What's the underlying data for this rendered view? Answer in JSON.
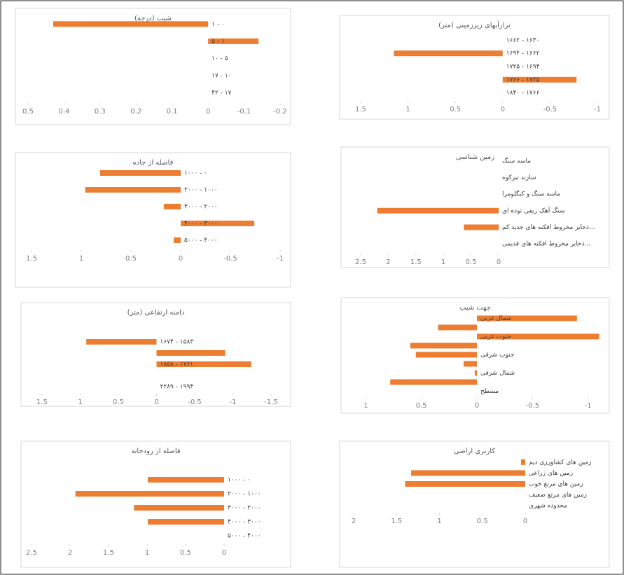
{
  "chart_data": [
    {
      "type": "bar",
      "title": "شیب (درجه)",
      "categories": [
        "۱ - ۰",
        "۵ - ۱",
        "۱۰ - ۵",
        "۱۷ - ۱۰",
        "۴۲ - ۱۷"
      ],
      "values": [
        0.43,
        -0.14,
        0,
        0,
        0
      ],
      "color": "#ed7d31",
      "xlim": [
        0.5,
        -0.2
      ],
      "xticks": [
        0.5,
        0.4,
        0.3,
        0.2,
        0.1,
        0,
        -0.1,
        -0.2
      ]
    },
    {
      "type": "bar",
      "title": "ترازآبهای زیرزمینی (متر)",
      "categories": [
        "۱۶۶۲ - ۱۶۳۰",
        "۱۶۹۴ - ۱۶۶۲",
        "۱۷۲۵ - ۱۶۹۴",
        "۱۷۶۶ - ۱۷۲۵",
        "۱۸۴۰ - ۱۷۶۶"
      ],
      "values": [
        0,
        1.15,
        0,
        -0.78,
        0
      ],
      "color": "#ed7d31",
      "xlim": [
        1.5,
        -1
      ],
      "xticks": [
        1.5,
        1,
        0.5,
        0,
        -0.5,
        -1
      ]
    },
    {
      "type": "bar",
      "title": "فاصله از جاده",
      "categories": [
        "۱۰۰۰ - ۰",
        "۲۰۰۰ - ۱۰۰۰",
        "۳۰۰۰ - ۲۰۰۰",
        "۴۰۰۰ - ۳۰۰۰",
        "۵۰۰۰ - ۴۰۰۰"
      ],
      "values": [
        0.81,
        0.96,
        0.17,
        -0.74,
        0.07
      ],
      "color": "#ed7d31",
      "xlim": [
        1.5,
        -1
      ],
      "xticks": [
        1.5,
        1,
        0.5,
        0,
        -0.5,
        -1
      ]
    },
    {
      "type": "bar",
      "title": "زمین شناسی",
      "categories": [
        "ماسه سنگ",
        "سازند نیزکوه",
        "ماسه سنگ و کنگلومرا",
        "سنگ آهک ریفی توده ای",
        "ذخایر مخروط افکنه های جدید کم...",
        "ذخایر مخروط افکنه های قدیمی..."
      ],
      "values": [
        0,
        0,
        0,
        2.2,
        0.63,
        0
      ],
      "color": "#ed7d31",
      "xlim": [
        2.5,
        0
      ],
      "xticks": [
        2.5,
        2,
        1.5,
        1,
        0.5,
        0
      ]
    },
    {
      "type": "bar",
      "title": "دامنه ارتفاعی (متر)",
      "categories": [
        "۱۶۷۴ - ۱۵۸۳",
        null,
        "۱۸۵۸ - ۱۷۶۱",
        null,
        "۲۲۸۹ - ۱۹۹۴"
      ],
      "values": [
        0.92,
        -0.9,
        -1.24,
        0,
        0
      ],
      "color": "#ed7d31",
      "xlim": [
        1.5,
        -1.5
      ],
      "xticks": [
        1.5,
        1,
        0.5,
        0,
        -0.5,
        -1,
        -1.5
      ]
    },
    {
      "type": "bar",
      "title": "جهت شیب",
      "categories": [
        "شمال غربی",
        null,
        "جنوب غربی",
        null,
        "جنوب شرقی",
        null,
        "شمال شرقی",
        null,
        "مسطح"
      ],
      "values": [
        -0.9,
        0.35,
        -1.1,
        0.6,
        0.55,
        0.12,
        0.02,
        0.78,
        0
      ],
      "color": "#ed7d31",
      "xlim": [
        1.5,
        -1.5
      ],
      "xticks": [
        1,
        0.5,
        0,
        -0.5,
        -1,
        -1.5
      ]
    },
    {
      "type": "bar",
      "title": "فاصله از رودخانه",
      "categories": [
        "۱۰۰۰ - ۰",
        "۲۰۰۰ - ۱۰۰۰",
        "۳۰۰۰ - ۲۰۰۰",
        "۴۰۰۰ - ۳۰۰۰",
        "۵۰۰۰ - ۴۰۰۰"
      ],
      "values": [
        0.99,
        1.93,
        1.17,
        0.99,
        0
      ],
      "color": "#ed7d31",
      "xlim": [
        2.5,
        0
      ],
      "xticks": [
        2.5,
        2,
        1.5,
        1,
        0.5,
        0
      ]
    },
    {
      "type": "bar",
      "title": "کاربری اراضی",
      "categories": [
        "زمین های کشاورزی دیم",
        "زمین های زراعی",
        "زمین های مرتع خوب",
        "زمین های مرتع ضعیف",
        "محدوده شهری"
      ],
      "values": [
        0.05,
        1.33,
        1.4,
        0,
        0
      ],
      "color": "#ed7d31",
      "xlim": [
        2,
        0
      ],
      "xticks": [
        2,
        1.5,
        1,
        0.5,
        0
      ]
    }
  ]
}
